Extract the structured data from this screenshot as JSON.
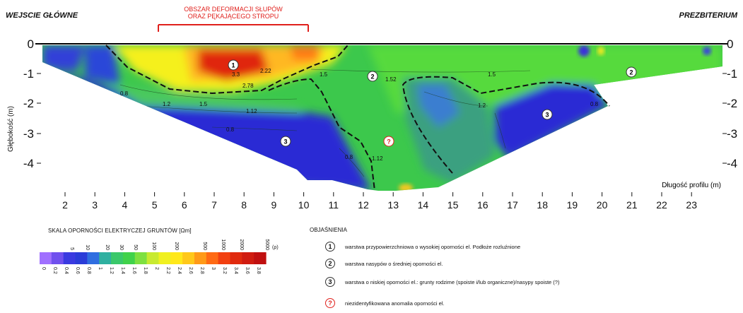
{
  "header": {
    "left_label": "WEJSCIE GŁÓWNE",
    "right_label": "PREZBITERIUM",
    "deformation_note_line1": "OBSZAR DEFORMACJI SŁUPÓW",
    "deformation_note_line2": "ORAZ PĘKAJĄCEGO STROPU"
  },
  "axes": {
    "y_label": "Głębokość (m)",
    "x_label": "Długość profilu (m)",
    "y_ticks": [
      "0",
      "-1",
      "-2",
      "-3",
      "-4"
    ],
    "x_ticks": [
      "2",
      "3",
      "4",
      "5",
      "6",
      "7",
      "8",
      "9",
      "10",
      "11",
      "12",
      "13",
      "14",
      "15",
      "16",
      "17",
      "18",
      "19",
      "20",
      "21",
      "22",
      "23"
    ]
  },
  "contour_labels": [
    "3.3",
    "2.78",
    "2.22",
    "1.5",
    "1.5",
    "1.2",
    "1.5",
    "1.12",
    "0.8",
    "1.2",
    "0.8",
    "1.12",
    "1.52",
    "0.8",
    "0.8"
  ],
  "zone_markers": [
    {
      "label": "1",
      "kind": "normal"
    },
    {
      "label": "2",
      "kind": "normal"
    },
    {
      "label": "2",
      "kind": "normal"
    },
    {
      "label": "3",
      "kind": "normal"
    },
    {
      "label": "3",
      "kind": "normal"
    },
    {
      "label": "?",
      "kind": "question"
    }
  ],
  "scale": {
    "title": "SKALA OPORNOŚCI ELEKTRYCZEJ GRUNTÓW [Ωm]",
    "rho_symbol": "(ρ)",
    "top_ticks": [
      "5",
      "10",
      "20",
      "30",
      "50",
      "100",
      "200",
      "500",
      "1000",
      "2000",
      "5000"
    ],
    "bottom_ticks": [
      "0",
      "0.2",
      "0.4",
      "0.6",
      "0.8",
      "1",
      "1.2",
      "1.4",
      "1.6",
      "1.8",
      "2",
      "2.2",
      "2.4",
      "2.6",
      "2.8",
      "3",
      "3.2",
      "3.4",
      "3.6",
      "3.8"
    ],
    "colors": [
      "#a070ff",
      "#7050ee",
      "#3a3ae0",
      "#2a3cd8",
      "#2f6ee0",
      "#2fb0a0",
      "#3ac86a",
      "#40d24a",
      "#7ee040",
      "#c8ea30",
      "#f0f020",
      "#ffe81a",
      "#ffc81a",
      "#ff9a18",
      "#ff6a14",
      "#f24010",
      "#e02a0e",
      "#d01c10",
      "#c01010"
    ]
  },
  "legend": {
    "title": "OBJAŚNIENIA",
    "items": [
      {
        "marker": "1",
        "text": "warstwa przypowierzchniowa o wysokiej oporności el. Podłoże rozluźnione"
      },
      {
        "marker": "2",
        "text": "warstwa nasypów o średniej oporności el."
      },
      {
        "marker": "3",
        "text": "warstwa o niskiej oporności el.: grunty rodzime (spoiste i/lub organiczne)/nasypy spoiste (?)"
      },
      {
        "marker": "?",
        "text": "niezidentyfikowana anomalia oporności el."
      }
    ]
  }
}
